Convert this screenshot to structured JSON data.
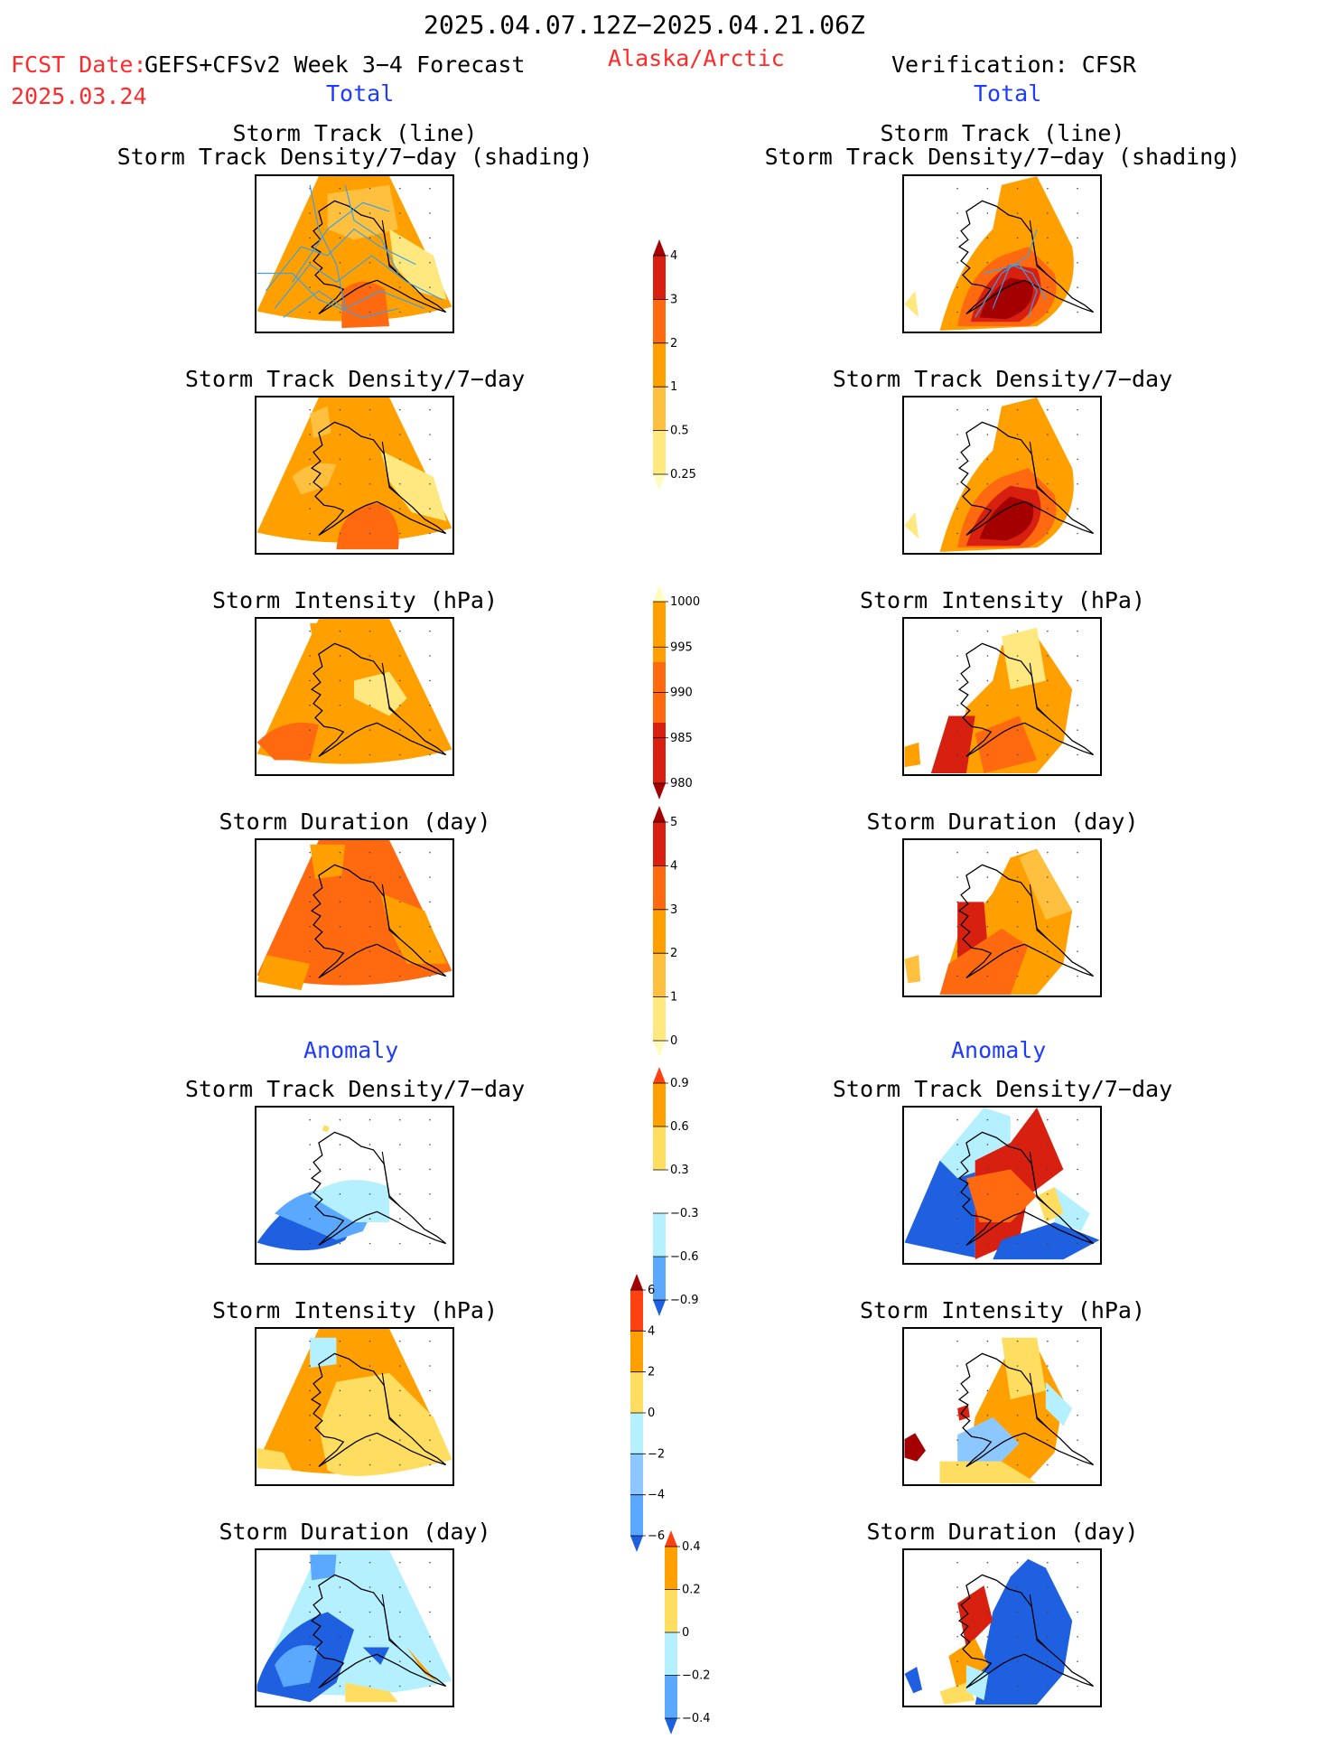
{
  "header": {
    "date_range": "2025.04.07.12Z−2025.04.21.06Z",
    "fcst_label": "FCST Date:",
    "fcst_value": "GEFS+CFSv2 Week 3−4 Forecast",
    "fcst_date": "2025.03.24",
    "region": "Alaska/Arctic",
    "verification": "Verification: CFSR"
  },
  "sections": {
    "total": "Total",
    "anomaly": "Anomaly"
  },
  "chart_data": [
    {
      "type": "heatmap",
      "id": "f-track",
      "column": "forecast",
      "title_line1": "Storm Track (line)",
      "title_line2": "Storm Track Density/7−day (shading)",
      "dominant_range": [
        1,
        3
      ]
    },
    {
      "type": "heatmap",
      "id": "v-track",
      "column": "verification",
      "title_line1": "Storm Track (line)",
      "title_line2": "Storm Track Density/7−day (shading)",
      "dominant_range": [
        1,
        4
      ]
    },
    {
      "type": "heatmap",
      "id": "f-density",
      "column": "forecast",
      "title": "Storm Track Density/7−day",
      "dominant_range": [
        1,
        3
      ]
    },
    {
      "type": "heatmap",
      "id": "v-density",
      "column": "verification",
      "title": "Storm Track Density/7−day",
      "dominant_range": [
        0.5,
        4
      ]
    },
    {
      "type": "heatmap",
      "id": "f-intensity",
      "column": "forecast",
      "title": "Storm Intensity (hPa)",
      "dominant_range": [
        990,
        1000
      ]
    },
    {
      "type": "heatmap",
      "id": "v-intensity",
      "column": "verification",
      "title": "Storm Intensity (hPa)",
      "dominant_range": [
        980,
        1000
      ]
    },
    {
      "type": "heatmap",
      "id": "f-duration",
      "column": "forecast",
      "title": "Storm Duration (day)",
      "dominant_range": [
        2,
        4
      ]
    },
    {
      "type": "heatmap",
      "id": "v-duration",
      "column": "verification",
      "title": "Storm Duration (day)",
      "dominant_range": [
        1,
        5
      ]
    },
    {
      "type": "heatmap",
      "id": "fa-density",
      "column": "forecast",
      "title": "Storm Track Density/7−day",
      "dominant_range": [
        -0.9,
        0.3
      ]
    },
    {
      "type": "heatmap",
      "id": "va-density",
      "column": "verification",
      "title": "Storm Track Density/7−day",
      "dominant_range": [
        -0.9,
        0.9
      ]
    },
    {
      "type": "heatmap",
      "id": "fa-intensity",
      "column": "forecast",
      "title": "Storm Intensity (hPa)",
      "dominant_range": [
        0,
        4
      ]
    },
    {
      "type": "heatmap",
      "id": "va-intensity",
      "column": "verification",
      "title": "Storm Intensity (hPa)",
      "dominant_range": [
        -4,
        6
      ]
    },
    {
      "type": "heatmap",
      "id": "fa-duration",
      "column": "forecast",
      "title": "Storm Duration (day)",
      "dominant_range": [
        -0.4,
        0.4
      ]
    },
    {
      "type": "heatmap",
      "id": "va-duration",
      "column": "verification",
      "title": "Storm Duration (day)",
      "dominant_range": [
        -0.4,
        0.4
      ]
    }
  ],
  "colorbars": {
    "density": {
      "labels": [
        "4",
        "3",
        "2",
        "1",
        "0.5",
        "0.25"
      ],
      "colors": [
        "#a50000",
        "#d82010",
        "#ff6a10",
        "#ffa000",
        "#ffc040",
        "#ffe880",
        "#fffcc0"
      ]
    },
    "intensity": {
      "labels": [
        "1000",
        "995",
        "990",
        "985",
        "980"
      ],
      "colors": [
        "#fffcc0",
        "#ffa000",
        "#ff6a10",
        "#d82010",
        "#a50000"
      ]
    },
    "duration": {
      "labels": [
        "5",
        "4",
        "3",
        "2",
        "1",
        "0"
      ],
      "colors": [
        "#a50000",
        "#d82010",
        "#ff6a10",
        "#ffa000",
        "#ffc040",
        "#ffe880",
        "#fffcc0"
      ]
    },
    "anom_density": {
      "labels": [
        "0.9",
        "0.6",
        "0.3",
        "−0.3",
        "−0.6",
        "−0.9"
      ],
      "colors": [
        "#ff4010",
        "#ffa000",
        "#ffdd60",
        "#ffffff",
        "#b4f0ff",
        "#5aa8ff",
        "#1e60e0"
      ]
    },
    "anom_intensity": {
      "labels": [
        "6",
        "4",
        "2",
        "0",
        "−2",
        "−4",
        "−6"
      ],
      "colors": [
        "#a50000",
        "#ff4010",
        "#ffa000",
        "#ffdd60",
        "#b4f0ff",
        "#8cc8ff",
        "#5aa8ff",
        "#1e60e0"
      ]
    },
    "anom_duration": {
      "labels": [
        "0.4",
        "0.2",
        "0",
        "−0.2",
        "−0.4"
      ],
      "colors": [
        "#ff4010",
        "#ffa000",
        "#ffdd60",
        "#b4f0ff",
        "#5aa8ff",
        "#1e60e0"
      ]
    }
  },
  "palette": {
    "pale": "#fffcc0",
    "lightyellow": "#ffe880",
    "yellow": "#ffdd60",
    "gold": "#ffc040",
    "orange": "#ffa000",
    "darkorange": "#ff6a10",
    "red": "#d82010",
    "darkred": "#a50000",
    "paleblue": "#b4f0ff",
    "lightblue": "#8cc8ff",
    "midblue": "#5aa8ff",
    "blue": "#1e60e0",
    "track": "#3aa0e8"
  }
}
